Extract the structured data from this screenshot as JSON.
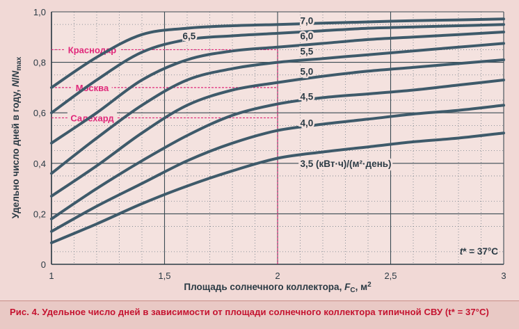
{
  "caption": "Рис. 4. Удельное число дней в зависимости от площади солнечного коллектора типичной СВУ (t* = 37°C)",
  "colors": {
    "curve": "#3e5a6a",
    "city_marker": "#e0287a",
    "grid": "#3a4a52",
    "caption": "#c4122f"
  },
  "chart_data": {
    "type": "line",
    "xlabel": "Площадь солнечного коллектора, Fc, м²",
    "ylabel": "Удельно число дней в году, N/Nmax",
    "xlim": [
      1,
      3
    ],
    "ylim": [
      0,
      1.0
    ],
    "xticks": [
      "1",
      "1,5",
      "2",
      "2,5",
      "3"
    ],
    "yticks": [
      "0",
      "0,2",
      "0,4",
      "0,6",
      "0,8",
      "1,0"
    ],
    "grid": true,
    "annotation": "t* = 37°C",
    "series": [
      {
        "name": "3,5 (кВт·ч)/(м²·день)",
        "x": [
          1.0,
          1.2,
          1.4,
          1.6,
          1.8,
          2.0,
          2.2,
          2.4,
          2.6,
          2.8,
          3.0
        ],
        "y": [
          0.085,
          0.16,
          0.24,
          0.31,
          0.37,
          0.42,
          0.445,
          0.465,
          0.485,
          0.5,
          0.52
        ]
      },
      {
        "name": "4,0",
        "x": [
          1.0,
          1.2,
          1.4,
          1.6,
          1.8,
          2.0,
          2.2,
          2.4,
          2.6,
          2.8,
          3.0
        ],
        "y": [
          0.13,
          0.23,
          0.32,
          0.41,
          0.48,
          0.53,
          0.555,
          0.575,
          0.595,
          0.61,
          0.63
        ]
      },
      {
        "name": "4,5",
        "x": [
          1.0,
          1.2,
          1.4,
          1.6,
          1.8,
          2.0,
          2.2,
          2.4,
          2.6,
          2.8,
          3.0
        ],
        "y": [
          0.18,
          0.3,
          0.41,
          0.51,
          0.59,
          0.635,
          0.66,
          0.675,
          0.69,
          0.71,
          0.73
        ]
      },
      {
        "name": "5,0",
        "x": [
          1.0,
          1.2,
          1.4,
          1.6,
          1.8,
          2.0,
          2.2,
          2.4,
          2.6,
          2.8,
          3.0
        ],
        "y": [
          0.27,
          0.39,
          0.52,
          0.63,
          0.69,
          0.72,
          0.745,
          0.765,
          0.78,
          0.795,
          0.81
        ]
      },
      {
        "name": "5,5",
        "x": [
          1.0,
          1.2,
          1.4,
          1.6,
          1.8,
          2.0,
          2.2,
          2.4,
          2.6,
          2.8,
          3.0
        ],
        "y": [
          0.36,
          0.5,
          0.63,
          0.73,
          0.775,
          0.8,
          0.815,
          0.83,
          0.845,
          0.86,
          0.875
        ]
      },
      {
        "name": "6,0",
        "x": [
          1.0,
          1.2,
          1.4,
          1.6,
          1.8,
          2.0,
          2.2,
          2.4,
          2.6,
          2.8,
          3.0
        ],
        "y": [
          0.48,
          0.6,
          0.73,
          0.81,
          0.845,
          0.86,
          0.875,
          0.89,
          0.9,
          0.91,
          0.92
        ]
      },
      {
        "name": "6,5",
        "x": [
          1.0,
          1.2,
          1.4,
          1.6,
          1.8,
          2.0,
          2.2,
          2.4,
          2.6,
          2.8,
          3.0
        ],
        "y": [
          0.6,
          0.73,
          0.84,
          0.89,
          0.905,
          0.915,
          0.925,
          0.935,
          0.94,
          0.945,
          0.95
        ]
      },
      {
        "name": "7,0",
        "x": [
          1.0,
          1.2,
          1.4,
          1.6,
          1.8,
          2.0,
          2.2,
          2.4,
          2.6,
          2.8,
          3.0
        ],
        "y": [
          0.7,
          0.82,
          0.91,
          0.935,
          0.945,
          0.95,
          0.955,
          0.96,
          0.965,
          0.968,
          0.972
        ]
      }
    ],
    "series_labels": [
      {
        "text": "3,5 (кВт·ч)/(м²·день)",
        "x": 2.1,
        "y": 0.4
      },
      {
        "text": "4,0",
        "x": 2.1,
        "y": 0.56
      },
      {
        "text": "4,5",
        "x": 2.1,
        "y": 0.665
      },
      {
        "text": "5,0",
        "x": 2.1,
        "y": 0.765
      },
      {
        "text": "5,5",
        "x": 2.1,
        "y": 0.845
      },
      {
        "text": "6,0",
        "x": 2.1,
        "y": 0.905
      },
      {
        "text": "6,5",
        "x": 1.58,
        "y": 0.905
      },
      {
        "text": "7,0",
        "x": 2.1,
        "y": 0.965
      }
    ],
    "city_markers": [
      {
        "name": "Краснодар",
        "y": 0.85,
        "x_end": 2.0
      },
      {
        "name": "Москва",
        "y": 0.7,
        "x_end": 2.0
      },
      {
        "name": "Салехард",
        "y": 0.58,
        "x_end": 2.0
      }
    ],
    "guide_x": 2.0
  }
}
